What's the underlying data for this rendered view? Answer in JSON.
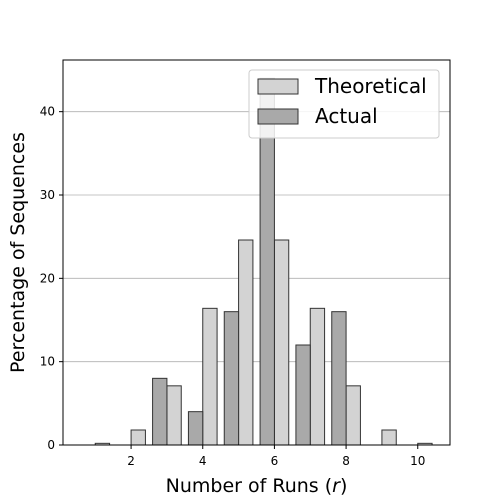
{
  "chart_data": {
    "type": "bar",
    "title": "",
    "xlabel": "Number of Runs (",
    "xlabel_var": "r",
    "xlabel_close": ")",
    "ylabel": "Percentage of Sequences",
    "x": [
      1,
      2,
      3,
      4,
      5,
      6,
      7,
      8,
      9,
      10
    ],
    "series": [
      {
        "name": "Theoretical",
        "color": "#d3d3d3",
        "values": [
          0.2,
          1.8,
          7.1,
          16.4,
          24.6,
          24.6,
          16.4,
          7.1,
          1.8,
          0.2
        ]
      },
      {
        "name": "Actual",
        "color": "#a9a9a9",
        "values": [
          0,
          0,
          8.0,
          4.0,
          16.0,
          44.0,
          12.0,
          16.0,
          0,
          0
        ]
      }
    ],
    "xlim": [
      0.1,
      10.9
    ],
    "ylim": [
      0,
      46.2
    ],
    "xticks": [
      2,
      4,
      6,
      8,
      10
    ],
    "yticks": [
      0,
      10,
      20,
      30,
      40
    ],
    "grid": "y",
    "legend": "top-right",
    "edge_color": "#333333"
  }
}
